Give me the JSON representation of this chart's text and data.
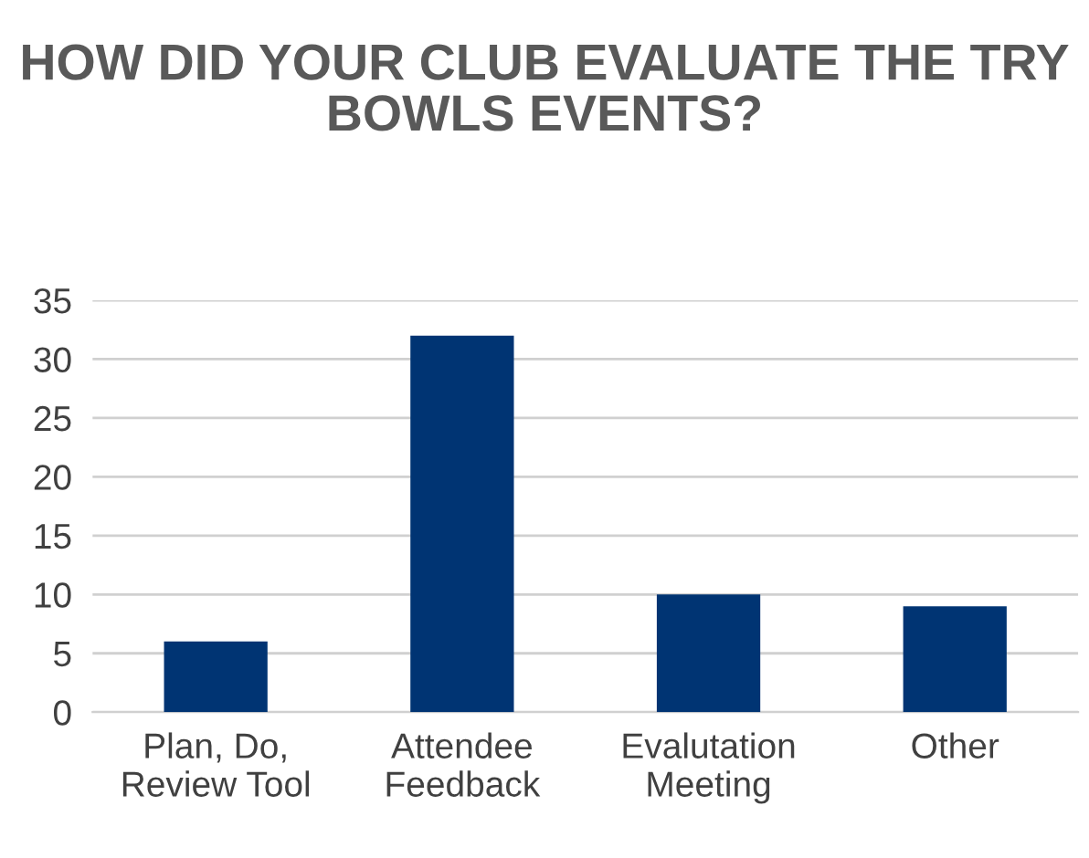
{
  "chart_data": {
    "type": "bar",
    "title": "HOW DID YOUR CLUB EVALUATE THE TRY BOWLS EVENTS?",
    "categories": [
      "Plan, Do,\nReview Tool",
      "Attendee\nFeedback",
      "Evalutation\nMeeting",
      "Other"
    ],
    "values": [
      6,
      32,
      10,
      9
    ],
    "color": "#003473",
    "ylim": [
      0,
      35
    ],
    "yticks": [
      0,
      5,
      10,
      15,
      20,
      25,
      30,
      35
    ],
    "grid": "y"
  }
}
